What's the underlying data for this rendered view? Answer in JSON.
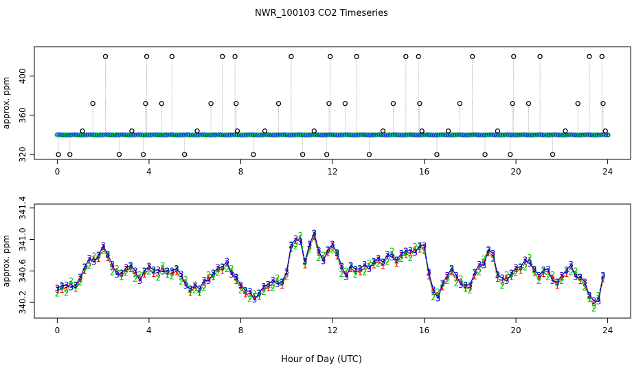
{
  "title": "NWR_100103  CO2 Timeseries",
  "xlabel": "Hour of Day (UTC)",
  "chart_data": [
    {
      "type": "scatter",
      "ylabel": "approx. ppm",
      "xlim": [
        -1.0,
        25.0
      ],
      "ylim": [
        315,
        430
      ],
      "xticks": [
        0,
        4,
        8,
        12,
        16,
        20,
        24
      ],
      "yticks": [
        320,
        360,
        400
      ],
      "baseline": 340,
      "outlier_x": [
        0.05,
        0.55,
        1.1,
        1.55,
        2.1,
        2.7,
        3.25,
        3.75,
        3.85,
        3.9,
        4.55,
        5.0,
        5.55,
        6.1,
        6.7,
        7.2,
        7.75,
        7.8,
        7.85,
        8.55,
        9.05,
        9.65,
        10.2,
        10.7,
        11.2,
        11.75,
        11.85,
        11.9,
        12.55,
        13.05,
        13.6,
        14.2,
        14.65,
        15.2,
        15.75,
        15.8,
        15.9,
        16.55,
        17.05,
        17.55,
        18.1,
        18.65,
        19.2,
        19.75,
        19.85,
        19.9,
        20.55,
        21.05,
        21.6,
        22.15,
        22.7,
        23.2,
        23.75,
        23.8,
        23.9
      ],
      "outlier_y": [
        320,
        320,
        344,
        372,
        420,
        320,
        344,
        320,
        372,
        420,
        372,
        420,
        320,
        344,
        372,
        420,
        420,
        372,
        344,
        320,
        344,
        372,
        420,
        320,
        344,
        320,
        372,
        420,
        372,
        420,
        320,
        344,
        372,
        420,
        420,
        372,
        344,
        320,
        344,
        372,
        420,
        320,
        344,
        320,
        372,
        420,
        372,
        420,
        320,
        344,
        372,
        420,
        420,
        372,
        344
      ]
    },
    {
      "type": "line",
      "ylabel": "approx. ppm",
      "xlim": [
        -1.0,
        25.0
      ],
      "ylim": [
        340.0,
        341.45
      ],
      "xticks": [
        0,
        4,
        8,
        12,
        16,
        20,
        24
      ],
      "yticks": [
        340.2,
        340.6,
        341.0,
        341.4
      ],
      "ytick_labels": [
        "340.2",
        "340.6",
        "341.0",
        "341.4"
      ],
      "series": [
        {
          "name": "1",
          "color": "#ff0000"
        },
        {
          "name": "2",
          "color": "#00c000"
        },
        {
          "name": "3",
          "color": "#0000cd"
        }
      ],
      "x": [
        0.0,
        0.2,
        0.4,
        0.6,
        0.8,
        1.0,
        1.2,
        1.4,
        1.6,
        1.8,
        2.0,
        2.2,
        2.4,
        2.6,
        2.8,
        3.0,
        3.2,
        3.4,
        3.6,
        3.8,
        4.0,
        4.2,
        4.4,
        4.6,
        4.8,
        5.0,
        5.2,
        5.4,
        5.6,
        5.8,
        6.0,
        6.2,
        6.4,
        6.6,
        6.8,
        7.0,
        7.2,
        7.4,
        7.6,
        7.8,
        8.0,
        8.2,
        8.4,
        8.6,
        8.8,
        9.0,
        9.2,
        9.4,
        9.6,
        9.8,
        10.0,
        10.2,
        10.4,
        10.6,
        10.8,
        11.0,
        11.2,
        11.4,
        11.6,
        11.8,
        12.0,
        12.2,
        12.4,
        12.6,
        12.8,
        13.0,
        13.2,
        13.4,
        13.6,
        13.8,
        14.0,
        14.2,
        14.4,
        14.6,
        14.8,
        15.0,
        15.2,
        15.4,
        15.6,
        15.8,
        16.0,
        16.2,
        16.4,
        16.6,
        16.8,
        17.0,
        17.2,
        17.4,
        17.6,
        17.8,
        18.0,
        18.2,
        18.4,
        18.6,
        18.8,
        19.0,
        19.2,
        19.4,
        19.6,
        19.8,
        20.0,
        20.2,
        20.4,
        20.6,
        20.8,
        21.0,
        21.2,
        21.4,
        21.6,
        21.8,
        22.0,
        22.2,
        22.4,
        22.6,
        22.8,
        23.0,
        23.2,
        23.4,
        23.6,
        23.8
      ],
      "values": [
        340.34,
        340.38,
        340.36,
        340.42,
        340.4,
        340.48,
        340.62,
        340.7,
        340.74,
        340.78,
        340.88,
        340.78,
        340.62,
        340.58,
        340.55,
        340.6,
        340.64,
        340.54,
        340.5,
        340.58,
        340.62,
        340.58,
        340.55,
        340.62,
        340.58,
        340.56,
        340.6,
        340.5,
        340.44,
        340.35,
        340.38,
        340.34,
        340.42,
        340.5,
        340.55,
        340.6,
        340.62,
        340.66,
        340.58,
        340.5,
        340.38,
        340.32,
        340.28,
        340.26,
        340.3,
        340.36,
        340.4,
        340.42,
        340.46,
        340.44,
        340.55,
        340.9,
        340.95,
        341.0,
        340.7,
        340.9,
        341.05,
        340.8,
        340.75,
        340.85,
        340.9,
        340.8,
        340.6,
        340.55,
        340.65,
        340.58,
        340.6,
        340.62,
        340.65,
        340.7,
        340.72,
        340.68,
        340.75,
        340.8,
        340.72,
        340.78,
        340.82,
        340.8,
        340.86,
        340.9,
        340.88,
        340.55,
        340.3,
        340.28,
        340.42,
        340.5,
        340.6,
        340.48,
        340.45,
        340.4,
        340.38,
        340.55,
        340.62,
        340.7,
        340.85,
        340.78,
        340.52,
        340.45,
        340.5,
        340.55,
        340.6,
        340.62,
        340.68,
        340.72,
        340.6,
        340.5,
        340.58,
        340.56,
        340.5,
        340.44,
        340.5,
        340.58,
        340.62,
        340.55,
        340.5,
        340.42,
        340.26,
        340.16,
        340.24,
        340.52
      ],
      "offsets": [
        [
          0.02,
          -0.03,
          0.04
        ],
        [
          -0.02,
          0.02,
          0.03
        ],
        [
          0.03,
          -0.04,
          0.06
        ],
        [
          0.01,
          0.05,
          -0.03
        ],
        [
          -0.03,
          0.01,
          0.02
        ]
      ]
    }
  ]
}
